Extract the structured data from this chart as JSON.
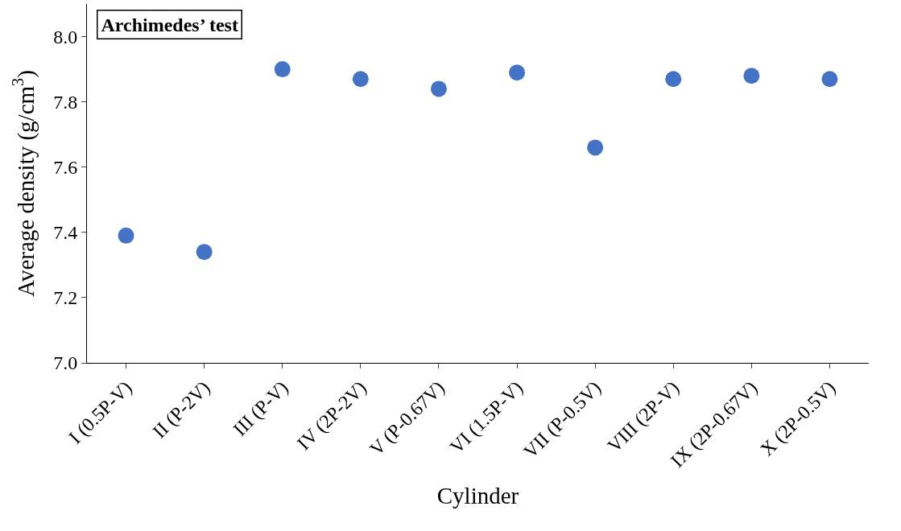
{
  "chart_data": {
    "type": "scatter",
    "title": "Archimedes’ test",
    "xlabel": "Cylinder",
    "ylabel": "Average density (g/cm$^{3}$)",
    "categories": [
      "I (0.5P-V)",
      "II (P-2V)",
      "III (P-V)",
      "IV (2P-2V)",
      "V (P-0.67V)",
      "VI (1.5P-V)",
      "VII (P-0.5V)",
      "VIII (2P-V)",
      "IX (2P-0.67V)",
      "X (2P-0.5V)"
    ],
    "values": [
      7.39,
      7.34,
      7.9,
      7.87,
      7.84,
      7.89,
      7.66,
      7.87,
      7.88,
      7.87
    ],
    "color": "#4472c4",
    "marker": "circle",
    "ylim": [
      7.0,
      8.1
    ],
    "yticks": [
      {
        "value": 7.0,
        "label": "7.0"
      },
      {
        "value": 7.2,
        "label": "7.2"
      },
      {
        "value": 7.4,
        "label": "7.4"
      },
      {
        "value": 7.6,
        "label": "7.6"
      },
      {
        "value": 7.8,
        "label": "7.8"
      },
      {
        "value": 8.0,
        "label": "8.0"
      }
    ]
  }
}
